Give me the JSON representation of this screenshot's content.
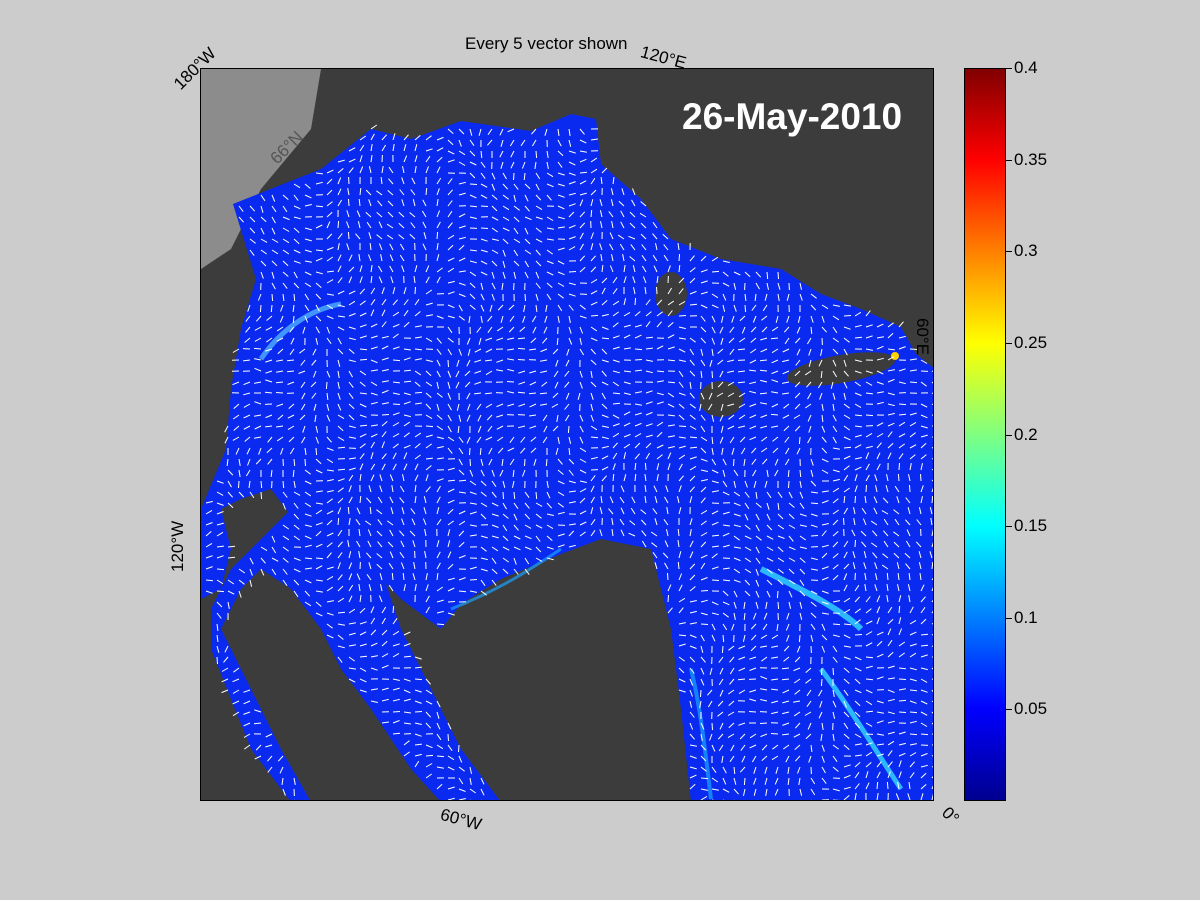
{
  "figure": {
    "title": "Every 5 vector shown",
    "date": "26-May-2010"
  },
  "map": {
    "longitude_labels": {
      "top_left": "180°W",
      "top_right": "120°E",
      "right": "60°E",
      "left": "120°W",
      "bottom_left": "60°W",
      "bottom_right": "0°"
    },
    "latitude_label": "66°N",
    "colors": {
      "land": "#3c3c3c",
      "ice_or_shelf": "#8c8c8c",
      "ocean_low": "#0a2af0",
      "vectors": "#ffffff"
    }
  },
  "colorbar": {
    "min": 0,
    "max": 0.4,
    "tick_values": [
      0.05,
      0.1,
      0.15,
      0.2,
      0.25,
      0.3,
      0.35,
      0.4
    ],
    "ticks": [
      "0.05",
      "0.1",
      "0.15",
      "0.2",
      "0.25",
      "0.3",
      "0.35",
      "0.4"
    ],
    "colormap": [
      "#00008f",
      "#0000ff",
      "#0080ff",
      "#00ffff",
      "#80ff80",
      "#ffff00",
      "#ff8000",
      "#ff0000",
      "#800000"
    ]
  }
}
